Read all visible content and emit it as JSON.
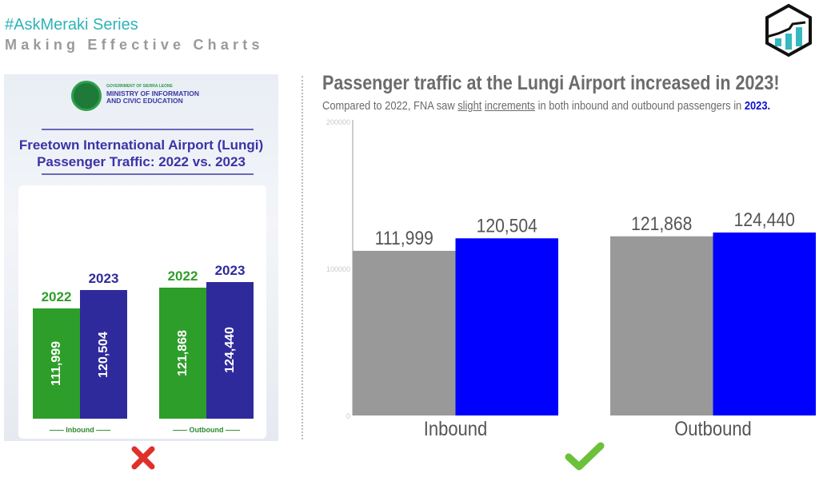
{
  "header": {
    "series": "#AskMeraki Series",
    "subtitle": "Making Effective Charts"
  },
  "left_infographic": {
    "gov": "GOVERNMENT OF SIERRA LEONE",
    "ministry_1": "MINISTRY OF INFORMATION",
    "ministry_2": "AND CIVIC EDUCATION",
    "title_1": "Freetown International Airport (Lungi)",
    "title_2": "Passenger Traffic: 2022 vs. 2023",
    "verdict_icon": "red-x-icon"
  },
  "right_chart": {
    "headline": "Passenger traffic at the Lungi Airport increased in  2023!",
    "sub_pre": "Compared to 2022, FNA saw ",
    "sub_u1": "slight",
    "sub_u2": "increments",
    "sub_mid": " in both inbound and outbound passengers in ",
    "sub_year": "2023.",
    "verdict_icon": "green-check-icon"
  },
  "chart_data": [
    {
      "type": "bar",
      "title": "Freetown International Airport (Lungi) Passenger Traffic: 2022 vs. 2023",
      "categories": [
        "Inbound",
        "Outbound"
      ],
      "series": [
        {
          "name": "2022",
          "values": [
            111999,
            121868
          ],
          "color": "#2e9e2a"
        },
        {
          "name": "2023",
          "values": [
            120504,
            124440
          ],
          "color": "#2f2a9c"
        }
      ],
      "value_labels": [
        [
          "111,999",
          "121,868"
        ],
        [
          "120,504",
          "124,440"
        ]
      ]
    },
    {
      "type": "bar",
      "title": "Passenger traffic at the Lungi Airport increased in 2023!",
      "categories": [
        "Inbound",
        "Outbound"
      ],
      "series": [
        {
          "name": "2022",
          "values": [
            111999,
            121868
          ],
          "color": "#999999"
        },
        {
          "name": "2023",
          "values": [
            120504,
            124440
          ],
          "color": "#0000ff"
        }
      ],
      "value_labels": [
        [
          "111,999",
          "121,868"
        ],
        [
          "120,504",
          "124,440"
        ]
      ],
      "yticks": [
        "0",
        "100000",
        "200000"
      ],
      "ylim": [
        0,
        200000
      ],
      "grid": false
    }
  ]
}
